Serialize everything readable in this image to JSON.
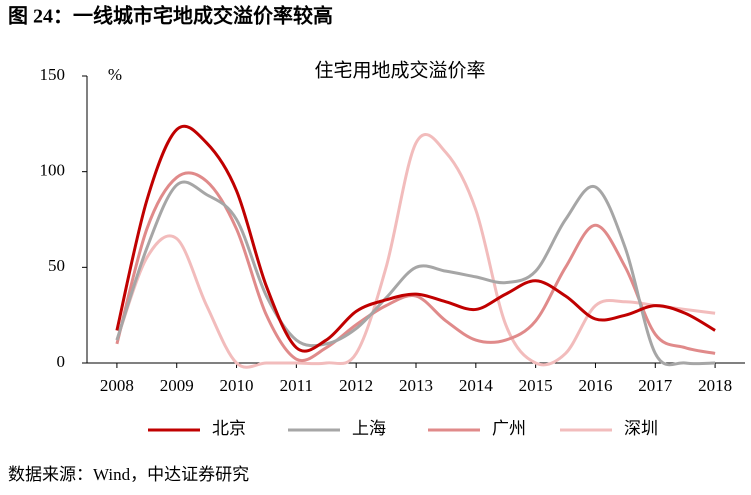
{
  "chart_data": {
    "type": "line",
    "figure_title": "图 24：一线城市宅地成交溢价率较高",
    "title": "住宅用地成交溢价率",
    "y_unit": "%",
    "source": "数据来源：Wind，中达证券研究",
    "x": [
      2008,
      2008.5,
      2009,
      2009.5,
      2010,
      2010.5,
      2011,
      2011.5,
      2012,
      2012.5,
      2013,
      2013.5,
      2014,
      2014.5,
      2015,
      2015.5,
      2016,
      2016.5,
      2017,
      2017.5,
      2018
    ],
    "series": [
      {
        "name": "北京",
        "color": "#c00000",
        "values": [
          17,
          85,
          122,
          115,
          90,
          40,
          8,
          12,
          27,
          33,
          36,
          32,
          28,
          36,
          43,
          35,
          23,
          25,
          30,
          26,
          17
        ]
      },
      {
        "name": "上海",
        "color": "#a6a6a6",
        "values": [
          12,
          60,
          93,
          88,
          75,
          35,
          12,
          10,
          18,
          34,
          50,
          48,
          45,
          42,
          48,
          75,
          92,
          60,
          5,
          0,
          0
        ]
      },
      {
        "name": "广州",
        "color": "#e08a8a",
        "values": [
          10,
          70,
          97,
          95,
          70,
          25,
          2,
          8,
          20,
          30,
          35,
          22,
          12,
          12,
          22,
          50,
          72,
          50,
          15,
          8,
          5
        ]
      },
      {
        "name": "深圳",
        "color": "#f2bcbc",
        "values": [
          12,
          55,
          65,
          30,
          0,
          0,
          0,
          0,
          5,
          50,
          115,
          110,
          80,
          20,
          0,
          5,
          30,
          32,
          30,
          28,
          26
        ]
      }
    ],
    "xlim": [
      2007.5,
      2018.5
    ],
    "xticks": [
      2008,
      2009,
      2010,
      2011,
      2012,
      2013,
      2014,
      2015,
      2016,
      2017,
      2018
    ],
    "ylim": [
      0,
      150
    ],
    "yticks": [
      0,
      50,
      100,
      150
    ],
    "legend": "bottom"
  }
}
